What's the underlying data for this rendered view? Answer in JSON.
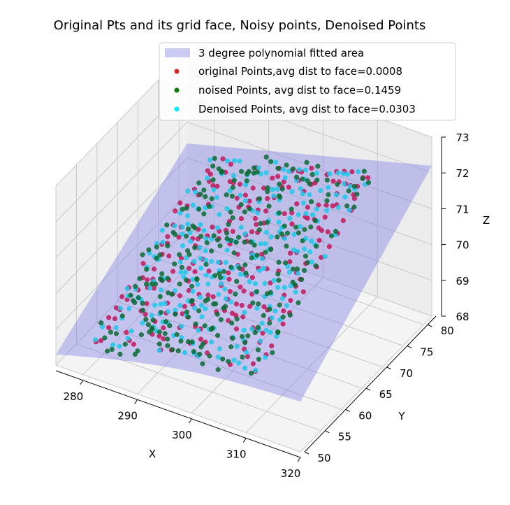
{
  "chart_data": {
    "type": "scatter",
    "projection": "3d",
    "title": "Original Pts and its grid face, Noisy points, Denoised Points",
    "xlabel": "X",
    "ylabel": "Y",
    "zlabel": "Z",
    "xlim": [
      275,
      320
    ],
    "ylim": [
      50,
      82
    ],
    "zlim": [
      68,
      73
    ],
    "xticks": [
      280,
      290,
      300,
      310,
      320
    ],
    "yticks": [
      50,
      55,
      60,
      65,
      70,
      75,
      80
    ],
    "zticks": [
      68,
      69,
      70,
      71,
      72,
      73
    ],
    "grid": true,
    "legend_position": "top-right",
    "surface": {
      "name": "3 degree polynomial fitted area",
      "color": "#7b7be6",
      "corner_z": {
        "x_min_y_min": 68.3,
        "x_max_y_min": 69.4,
        "x_min_y_max": 70.4,
        "x_max_y_max": 72.2
      },
      "x_range": [
        275,
        320
      ],
      "y_range": [
        50,
        82
      ]
    },
    "scatter_region": {
      "x": [
        280,
        311
      ],
      "y": [
        52,
        81
      ]
    },
    "series": [
      {
        "name": "original Points,avg dist to face=0.0008",
        "color": "#d62728",
        "point_color": "#c2185b",
        "spread_z": 0.0
      },
      {
        "name": "noised Points, avg dist to face=0.1459",
        "color": "#0b7a0b",
        "point_color": "#0a6b34",
        "spread_z": 0.3
      },
      {
        "name": "Denoised Points, avg dist to face=0.0303",
        "color": "#00eaff",
        "point_color": "#1ec8ea",
        "spread_z": 0.06
      }
    ]
  }
}
